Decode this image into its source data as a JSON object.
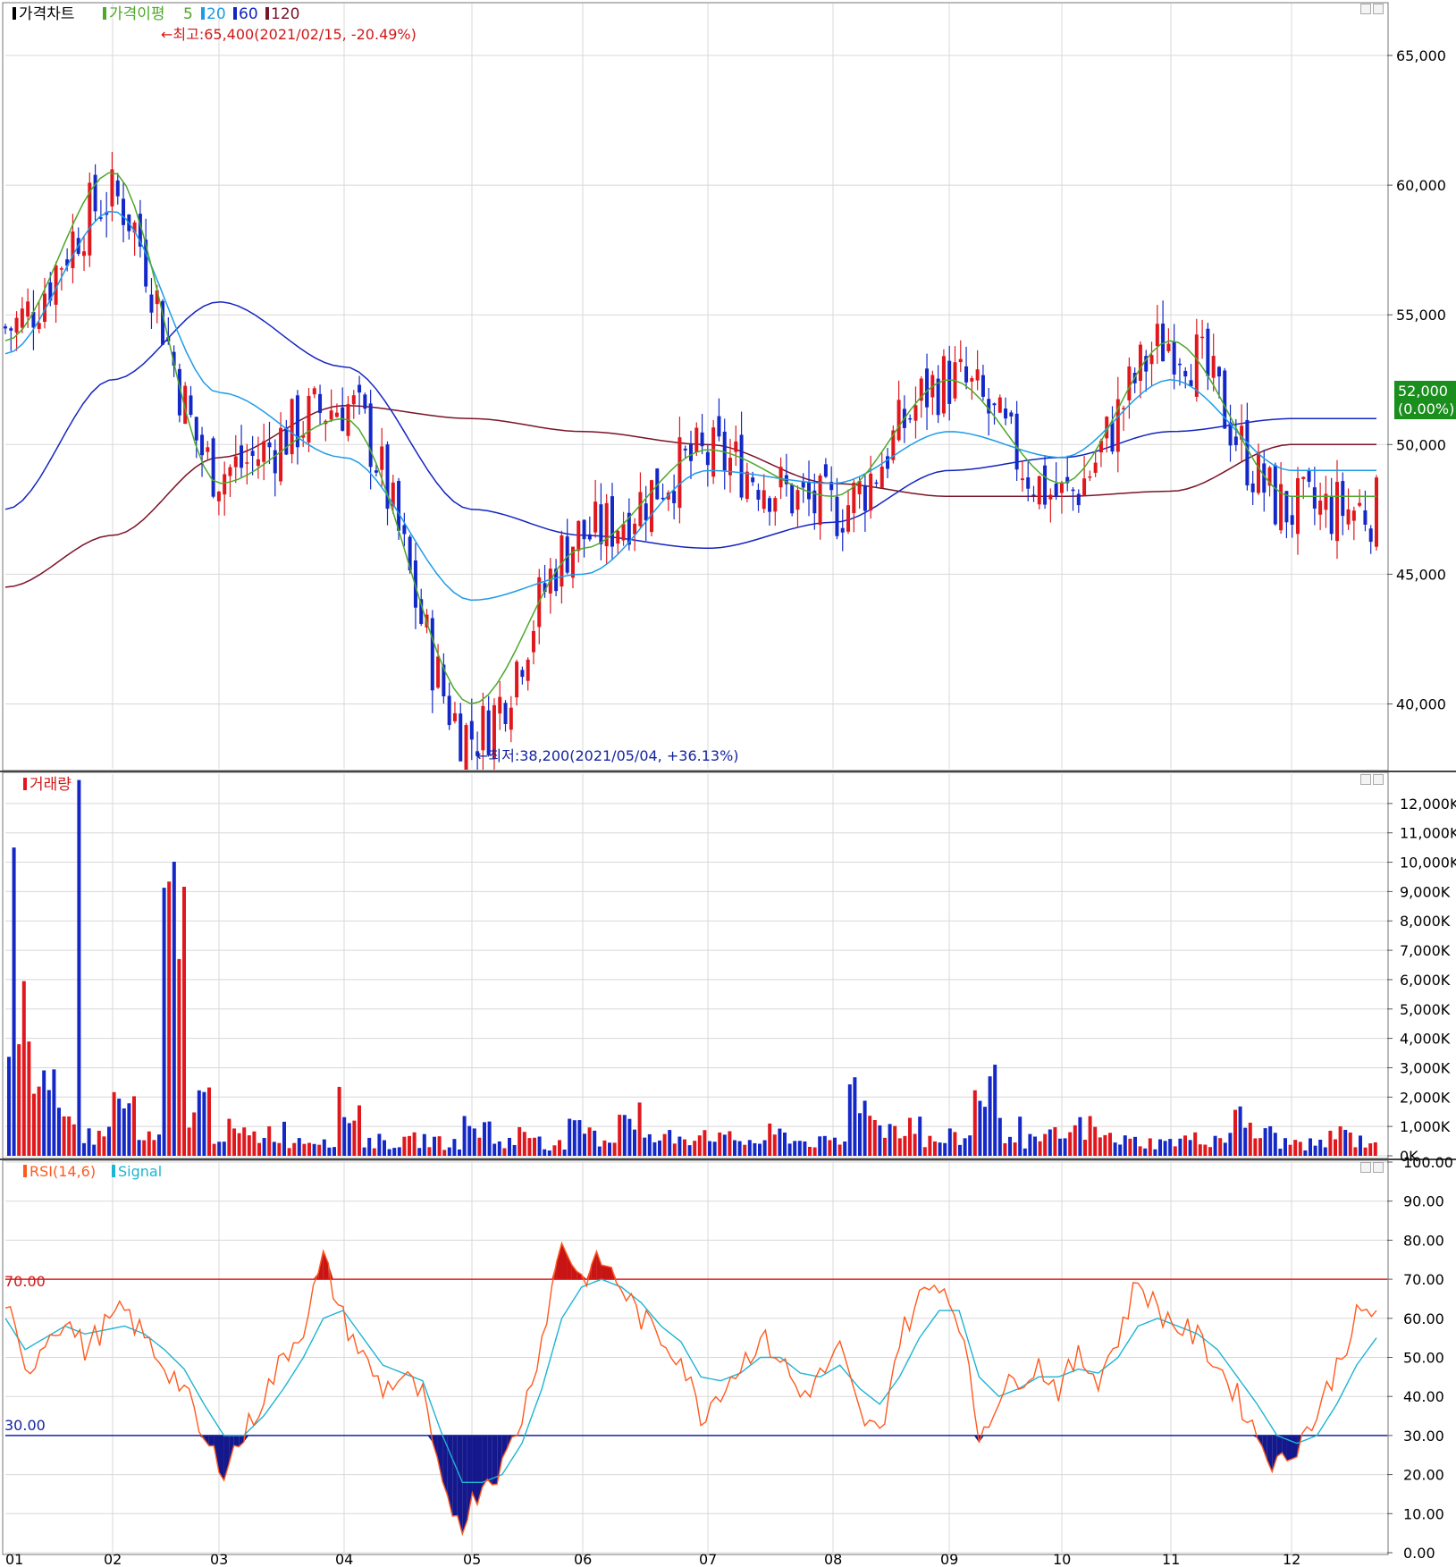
{
  "colors": {
    "up": "#e0181e",
    "down": "#1428c8",
    "ma5": "#4ea82a",
    "ma20": "#1e9be8",
    "ma60": "#1424c0",
    "ma120": "#7a1428",
    "rsi": "#ff5a1e",
    "signal": "#1eb4d2",
    "hi_line": "#e01818",
    "lo_line": "#1424a0"
  },
  "price_panel": {
    "legend": {
      "main": "가격차트",
      "ma_title": "가격이평",
      "ma5": "5",
      "ma20": "20",
      "ma60": "60",
      "ma120": "120"
    },
    "high_note": "←최고:65,400(2021/02/15, -20.49%)",
    "low_note": "←최저:38,200(2021/05/04, +36.13%)",
    "y_ticks": [
      "65,000",
      "60,000",
      "55,000",
      "50,000",
      "45,000",
      "40,000"
    ],
    "current_price": "52,000",
    "current_change": "(0.00%)"
  },
  "volume_panel": {
    "legend": "거래량",
    "y_ticks": [
      "12,000K",
      "11,000K",
      "10,000K",
      "9,000K",
      "8,000K",
      "7,000K",
      "6,000K",
      "5,000K",
      "4,000K",
      "3,000K",
      "2,000K",
      "1,000K",
      "0K"
    ]
  },
  "rsi_panel": {
    "legend_rsi": "RSI(14,6)",
    "legend_signal": "Signal",
    "y_ticks": [
      "100.00",
      "90.00",
      "80.00",
      "70.00",
      "60.00",
      "50.00",
      "40.00",
      "30.00",
      "20.00",
      "10.00",
      "0.00"
    ],
    "line70_label": "70.00",
    "line30_label": "30.00"
  },
  "x_axis": [
    "01",
    "02",
    "03",
    "04",
    "05",
    "06",
    "07",
    "08",
    "09",
    "10",
    "11",
    "12"
  ],
  "chart_data": {
    "type": "line",
    "title": "가격차트",
    "x": [
      "01",
      "02",
      "03",
      "04",
      "05",
      "06",
      "07",
      "08",
      "09",
      "10",
      "11",
      "12"
    ],
    "series": [
      {
        "name": "가격차트 (approx monthly close)",
        "values": [
          54500,
          59500,
          49000,
          51500,
          38800,
          46500,
          49500,
          47500,
          52500,
          48000,
          54000,
          47500
        ]
      },
      {
        "name": "5",
        "values": [
          54000,
          60500,
          48500,
          51000,
          40000,
          46000,
          49800,
          48000,
          52500,
          48500,
          54000,
          48000
        ]
      },
      {
        "name": "20",
        "values": [
          53500,
          59000,
          52000,
          49500,
          44000,
          45000,
          49000,
          48500,
          50500,
          49500,
          52500,
          49000
        ]
      },
      {
        "name": "60",
        "values": [
          47500,
          52500,
          55500,
          53000,
          47500,
          46500,
          46000,
          47000,
          49000,
          49500,
          50500,
          51000
        ]
      },
      {
        "name": "120",
        "values": [
          44500,
          46500,
          49500,
          51500,
          51000,
          50500,
          50000,
          48500,
          48000,
          48000,
          48200,
          50000
        ]
      }
    ],
    "price_high": 65400,
    "price_high_date": "2021/02/15",
    "price_low": 38200,
    "price_low_date": "2021/05/04",
    "last_price": 52000,
    "last_change_pct": 0.0,
    "price_ylim": [
      37500,
      67000
    ],
    "volume_k": [
      10500,
      3500,
      2000,
      1200,
      3000,
      1000,
      12800,
      3200,
      1500,
      1200,
      1500,
      1000,
      1100,
      2800,
      900,
      800,
      1000,
      800,
      1700,
      900,
      1300,
      700,
      1500,
      1100,
      2800,
      1000,
      1200,
      1500,
      1000,
      900,
      1300,
      900,
      800,
      4200,
      1800,
      2100,
      900,
      1100,
      4300,
      1600,
      900,
      1200,
      1700,
      1100,
      900,
      800,
      1000,
      1100,
      2100,
      1300,
      800,
      700,
      1300,
      900
    ],
    "volume_ylim": [
      0,
      13000
    ],
    "rsi": [
      65,
      45,
      55,
      60,
      52,
      58,
      62,
      55,
      48,
      42,
      28,
      22,
      30,
      40,
      50,
      58,
      75,
      60,
      50,
      42,
      45,
      40,
      15,
      8,
      18,
      22,
      35,
      55,
      80,
      70,
      75,
      68,
      60,
      55,
      50,
      35,
      42,
      48,
      55,
      50,
      40,
      45,
      52,
      35,
      30,
      55,
      65,
      70,
      60,
      30,
      40,
      45,
      48,
      42,
      50,
      45,
      55,
      70,
      62,
      58,
      55,
      48,
      40,
      30,
      22,
      28,
      35,
      48,
      60,
      62
    ],
    "signal": [
      60,
      52,
      55,
      58,
      56,
      57,
      58,
      56,
      52,
      47,
      38,
      30,
      30,
      35,
      42,
      50,
      60,
      62,
      55,
      48,
      46,
      44,
      30,
      18,
      18,
      20,
      28,
      42,
      60,
      68,
      70,
      68,
      64,
      58,
      54,
      45,
      44,
      46,
      50,
      50,
      46,
      45,
      48,
      42,
      38,
      45,
      55,
      62,
      62,
      45,
      40,
      42,
      45,
      45,
      47,
      46,
      50,
      58,
      60,
      58,
      56,
      52,
      45,
      38,
      30,
      28,
      30,
      38,
      48,
      55
    ],
    "rsi_ylim": [
      0,
      100
    ],
    "rsi_lines": [
      70,
      30
    ],
    "xlabel": "",
    "ylabel": ""
  }
}
